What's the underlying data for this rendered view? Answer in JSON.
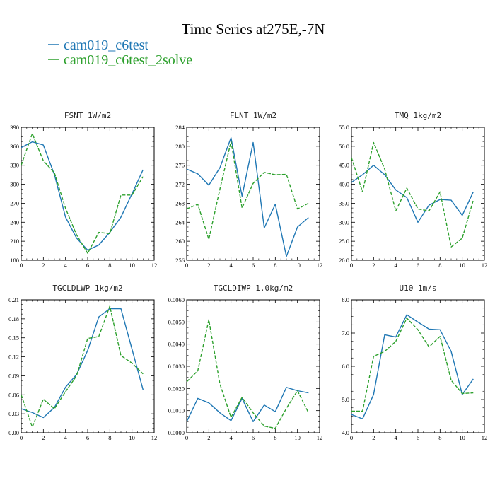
{
  "figure": {
    "title": "Time Series at275E,-7N",
    "legend": [
      {
        "label": "cam019_c6test",
        "color": "#1f77b4",
        "dash": "solid"
      },
      {
        "label": "cam019_c6test_2solve",
        "color": "#2ca02c",
        "dash": "dashed"
      }
    ]
  },
  "chart_data": [
    {
      "type": "line",
      "title": "FSNT  1W/m2",
      "xlim": [
        0,
        12
      ],
      "xticks": [
        0,
        2,
        4,
        6,
        8,
        10,
        12
      ],
      "ylim": [
        180,
        390
      ],
      "yticks": [
        180,
        210,
        240,
        270,
        300,
        330,
        360,
        390
      ],
      "ydecimals": 0,
      "x": [
        0,
        1,
        2,
        3,
        4,
        5,
        6,
        7,
        8,
        9,
        10,
        11
      ],
      "series": [
        {
          "name": "cam019_c6test",
          "values": [
            358,
            367,
            362,
            315,
            248,
            215,
            196,
            204,
            224,
            248,
            285,
            323
          ]
        },
        {
          "name": "cam019_c6test_2solve",
          "values": [
            330,
            380,
            337,
            318,
            262,
            220,
            191,
            224,
            222,
            283,
            283,
            312
          ]
        }
      ]
    },
    {
      "type": "line",
      "title": "FLNT  1W/m2",
      "xlim": [
        0,
        12
      ],
      "xticks": [
        0,
        2,
        4,
        6,
        8,
        10,
        12
      ],
      "ylim": [
        256,
        284
      ],
      "yticks": [
        256,
        260,
        264,
        268,
        272,
        276,
        280,
        284
      ],
      "ydecimals": 0,
      "x": [
        0,
        1,
        2,
        3,
        4,
        5,
        6,
        7,
        8,
        9,
        10,
        11
      ],
      "series": [
        {
          "name": "cam019_c6test",
          "values": [
            275.2,
            274.2,
            271.8,
            275.5,
            281.8,
            269.5,
            280.8,
            262.8,
            267.8,
            256.8,
            263.0,
            265.0
          ]
        },
        {
          "name": "cam019_c6test_2solve",
          "values": [
            266.8,
            267.8,
            260.4,
            271.0,
            281.0,
            267.0,
            272.2,
            274.5,
            274.0,
            274.1,
            266.8,
            268.0
          ]
        }
      ]
    },
    {
      "type": "line",
      "title": "TMQ  1kg/m2",
      "xlim": [
        0,
        12
      ],
      "xticks": [
        0,
        2,
        4,
        6,
        8,
        10,
        12
      ],
      "ylim": [
        20,
        55
      ],
      "yticks": [
        20,
        25,
        30,
        35,
        40,
        45,
        50,
        55
      ],
      "ydecimals": 1,
      "x": [
        0,
        1,
        2,
        3,
        4,
        5,
        6,
        7,
        8,
        9,
        10,
        11
      ],
      "series": [
        {
          "name": "cam019_c6test",
          "values": [
            40.5,
            42.5,
            45.0,
            42.5,
            38.5,
            36.5,
            30.0,
            34.5,
            36.0,
            35.8,
            31.8,
            38.0
          ]
        },
        {
          "name": "cam019_c6test_2solve",
          "values": [
            47.0,
            38.0,
            51.0,
            44.0,
            33.0,
            39.0,
            33.5,
            33.0,
            38.0,
            23.5,
            25.8,
            35.8
          ]
        }
      ]
    },
    {
      "type": "line",
      "title": "TGCLDLWP  1kg/m2",
      "xlim": [
        0,
        12
      ],
      "xticks": [
        0,
        2,
        4,
        6,
        8,
        10,
        12
      ],
      "ylim": [
        0,
        0.21
      ],
      "yticks": [
        0,
        0.03,
        0.06,
        0.09,
        0.12,
        0.15,
        0.18,
        0.21
      ],
      "ydecimals": 2,
      "x": [
        0,
        1,
        2,
        3,
        4,
        5,
        6,
        7,
        8,
        9,
        10,
        11
      ],
      "series": [
        {
          "name": "cam019_c6test",
          "values": [
            0.038,
            0.032,
            0.024,
            0.04,
            0.072,
            0.092,
            0.13,
            0.183,
            0.196,
            0.196,
            0.132,
            0.068
          ]
        },
        {
          "name": "cam019_c6test_2solve",
          "values": [
            0.06,
            0.009,
            0.053,
            0.038,
            0.065,
            0.09,
            0.149,
            0.152,
            0.2,
            0.122,
            0.11,
            0.093
          ]
        }
      ]
    },
    {
      "type": "line",
      "title": "TGCLDIWP  1.0kg/m2",
      "xlim": [
        0,
        12
      ],
      "xticks": [
        0,
        2,
        4,
        6,
        8,
        10,
        12
      ],
      "ylim": [
        0,
        0.006
      ],
      "yticks": [
        0,
        0.001,
        0.002,
        0.003,
        0.004,
        0.005,
        0.006
      ],
      "ydecimals": 4,
      "x": [
        0,
        1,
        2,
        3,
        4,
        5,
        6,
        7,
        8,
        9,
        10,
        11
      ],
      "series": [
        {
          "name": "cam019_c6test",
          "values": [
            0.0005,
            0.00155,
            0.00135,
            0.0009,
            0.00055,
            0.00155,
            0.0005,
            0.00125,
            0.00095,
            0.00205,
            0.0019,
            0.0018
          ]
        },
        {
          "name": "cam019_c6test_2solve",
          "values": [
            0.0023,
            0.0028,
            0.0051,
            0.0022,
            0.0007,
            0.0016,
            0.0009,
            0.0003,
            0.0002,
            0.0011,
            0.0019,
            0.0009
          ]
        }
      ]
    },
    {
      "type": "line",
      "title": "U10  1m/s",
      "xlim": [
        0,
        12
      ],
      "xticks": [
        0,
        2,
        4,
        6,
        8,
        10,
        12
      ],
      "ylim": [
        4,
        8
      ],
      "yticks": [
        4,
        5,
        6,
        7,
        8
      ],
      "ydecimals": 1,
      "x": [
        0,
        1,
        2,
        3,
        4,
        5,
        6,
        7,
        8,
        9,
        10,
        11
      ],
      "series": [
        {
          "name": "cam019_c6test",
          "values": [
            4.55,
            4.42,
            5.15,
            6.95,
            6.88,
            7.55,
            7.33,
            7.12,
            7.1,
            6.45,
            5.15,
            5.62
          ]
        },
        {
          "name": "cam019_c6test_2solve",
          "values": [
            4.65,
            4.65,
            6.3,
            6.45,
            6.75,
            7.45,
            7.1,
            6.58,
            6.9,
            5.58,
            5.18,
            5.2
          ]
        }
      ]
    }
  ]
}
